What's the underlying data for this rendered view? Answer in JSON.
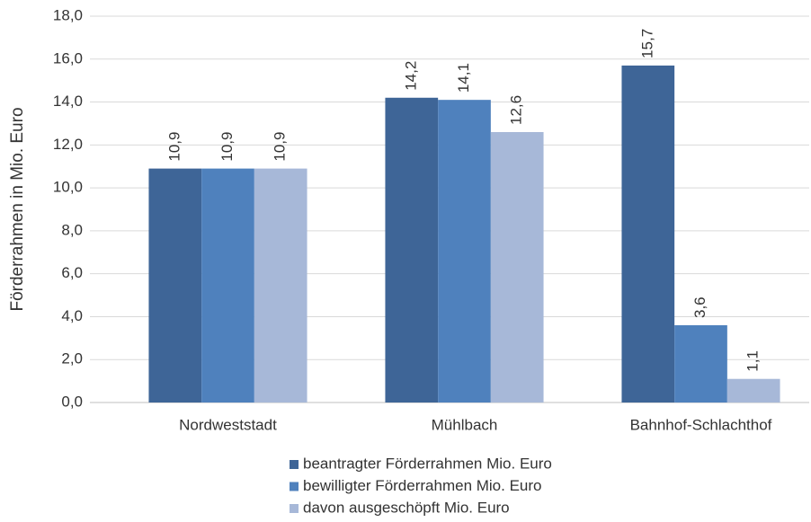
{
  "chart_data": {
    "type": "bar",
    "y_label": "Förderrahmen in Mio. Euro",
    "categories": [
      "Nordweststadt",
      "Mühlbach",
      "Bahnhof-Schlachthof"
    ],
    "series": [
      {
        "name": "beantragter Förderrahmen Mio. Euro",
        "color": "#3e6597",
        "values": [
          10.9,
          14.2,
          15.7
        ],
        "value_labels": [
          "10,9",
          "14,2",
          "15,7"
        ]
      },
      {
        "name": "bewilligter Förderrahmen Mio. Euro",
        "color": "#4f81bd",
        "values": [
          10.9,
          14.1,
          3.6
        ],
        "value_labels": [
          "10,9",
          "14,1",
          "3,6"
        ]
      },
      {
        "name": "davon ausgeschöpft Mio. Euro",
        "color": "#a7b8d8",
        "values": [
          10.9,
          12.6,
          1.1
        ],
        "value_labels": [
          "10,9",
          "12,6",
          "1,1"
        ]
      }
    ],
    "ylim": [
      0,
      18
    ],
    "yticks": [
      {
        "value": 0,
        "label": "0,0"
      },
      {
        "value": 2,
        "label": "2,0"
      },
      {
        "value": 4,
        "label": "4,0"
      },
      {
        "value": 6,
        "label": "6,0"
      },
      {
        "value": 8,
        "label": "8,0"
      },
      {
        "value": 10,
        "label": "10,0"
      },
      {
        "value": 12,
        "label": "12,0"
      },
      {
        "value": 14,
        "label": "14,0"
      },
      {
        "value": 16,
        "label": "16,0"
      },
      {
        "value": 18,
        "label": "18,0"
      }
    ],
    "grid": true,
    "legend": "bottom"
  }
}
